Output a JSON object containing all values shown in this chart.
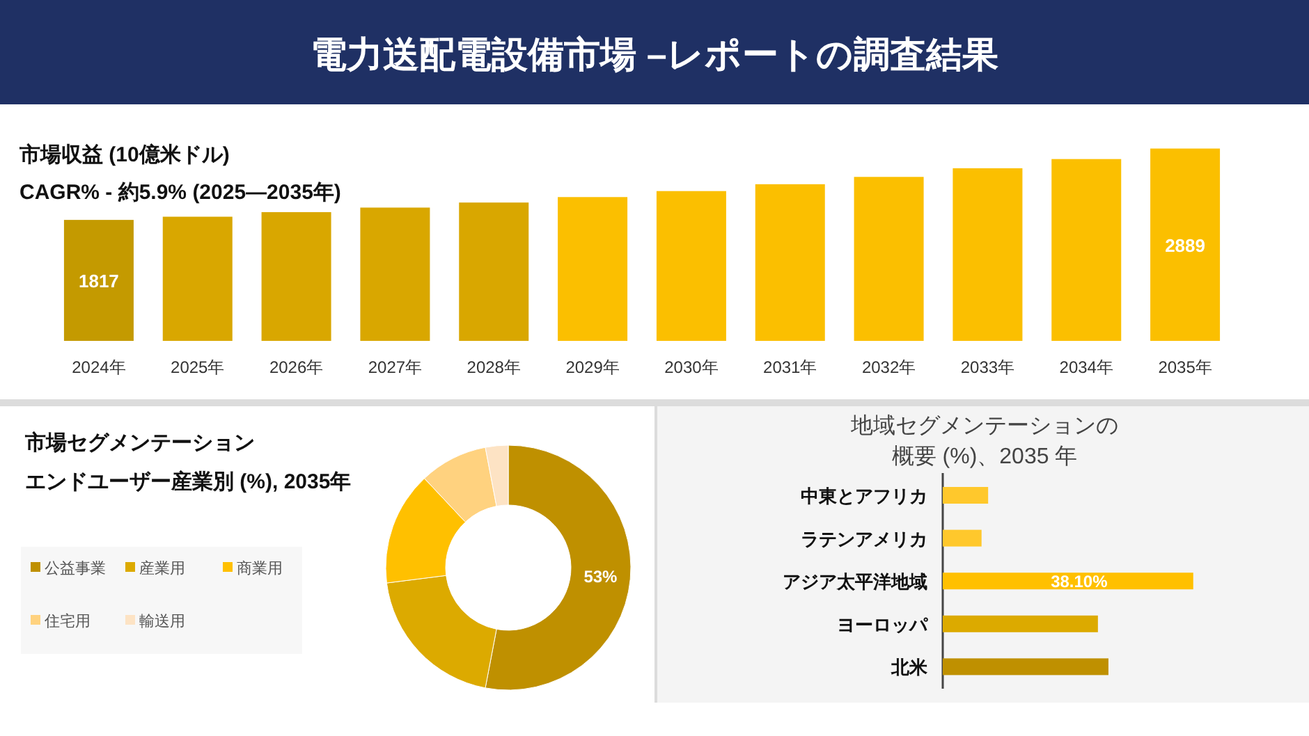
{
  "chart_data": [
    {
      "type": "bar",
      "title": "電力送配電設備市場 –レポートの調査結果",
      "ylabel": "市場収益 (10億米ドル)",
      "subtitle": "CAGR% - 約5.9% (2025―2035年)",
      "categories": [
        "2024年",
        "2025年",
        "2026年",
        "2027年",
        "2028年",
        "2029年",
        "2030年",
        "2031年",
        "2032年",
        "2033年",
        "2034年",
        "2035年"
      ],
      "values": [
        1817,
        1865,
        1934,
        2002,
        2078,
        2160,
        2250,
        2353,
        2463,
        2593,
        2731,
        2889
      ],
      "value_labels": [
        "1817",
        null,
        null,
        null,
        null,
        null,
        null,
        null,
        null,
        null,
        null,
        "2889"
      ],
      "colors": [
        "#c49a00",
        "#d9a700",
        "#d9a700",
        "#d9a700",
        "#d9a700",
        "#fbbf00",
        "#fbbf00",
        "#fbbf00",
        "#fbbf00",
        "#fbbf00",
        "#fbbf00",
        "#fbbf00"
      ],
      "tick_labels": "x"
    },
    {
      "type": "donut",
      "title": "市場セグメンテーション",
      "subtitle": "エンドユーザー産業別 (%), 2035年",
      "categories": [
        "公益事業",
        "産業用",
        "商業用",
        "住宅用",
        "輸送用"
      ],
      "values": [
        53,
        20,
        15,
        9,
        3
      ],
      "value_labels": [
        "53%",
        null,
        null,
        null,
        null
      ],
      "colors": [
        "#bf9000",
        "#dcaa00",
        "#ffc000",
        "#ffd27f",
        "#fde3c4"
      ],
      "legend": "left"
    },
    {
      "type": "bar",
      "orientation": "horizontal",
      "title": "地域セグメンテーションの概要 (%)、2035 年",
      "categories": [
        "中東とアフリカ",
        "ラテンアメリカ",
        "アジア太平洋地域",
        "ヨーロッパ",
        "北米"
      ],
      "values": [
        6.9,
        5.9,
        38.1,
        23.6,
        25.2
      ],
      "value_labels": [
        null,
        null,
        "38.10%",
        null,
        null
      ],
      "colors": [
        "#ffc82c",
        "#ffc82c",
        "#ffc000",
        "#dcaa00",
        "#bf9000"
      ],
      "tick_labels": "y"
    }
  ]
}
